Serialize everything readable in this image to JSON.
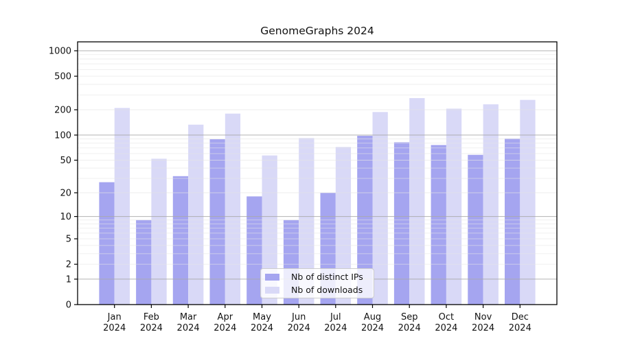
{
  "chart_data": {
    "type": "bar",
    "title": "GenomeGraphs 2024",
    "categories": [
      "Jan",
      "Feb",
      "Mar",
      "Apr",
      "May",
      "Jun",
      "Jul",
      "Aug",
      "Sep",
      "Oct",
      "Nov",
      "Dec"
    ],
    "category_year": "2024",
    "series": [
      {
        "name": "Nb of distinct IPs",
        "color": "#a5a5f0",
        "values": [
          27,
          9,
          32,
          89,
          18,
          9,
          20,
          98,
          82,
          76,
          58,
          91
        ]
      },
      {
        "name": "Nb of downloads",
        "color": "#d9d9f7",
        "values": [
          210,
          52,
          133,
          180,
          57,
          92,
          72,
          188,
          275,
          206,
          232,
          262
        ]
      }
    ],
    "yscale": "log1p",
    "xlabel": "",
    "ylabel": "",
    "yticks": [
      0,
      1,
      2,
      5,
      10,
      20,
      50,
      100,
      200,
      500,
      1000
    ],
    "major_grid_values": [
      1,
      10,
      100,
      1000
    ],
    "minor_grid_values": [
      2,
      3,
      4,
      5,
      6,
      7,
      8,
      9,
      20,
      30,
      40,
      50,
      60,
      70,
      80,
      90,
      200,
      300,
      400,
      500,
      600,
      700,
      800,
      900
    ],
    "ylim": [
      0,
      1280
    ],
    "grid": true,
    "legend_position": "lower center",
    "colors": {
      "spine": "#000000",
      "major_grid": "#aaaaaa",
      "minor_grid": "#e5e5e5",
      "tick_label": "#111111"
    }
  }
}
